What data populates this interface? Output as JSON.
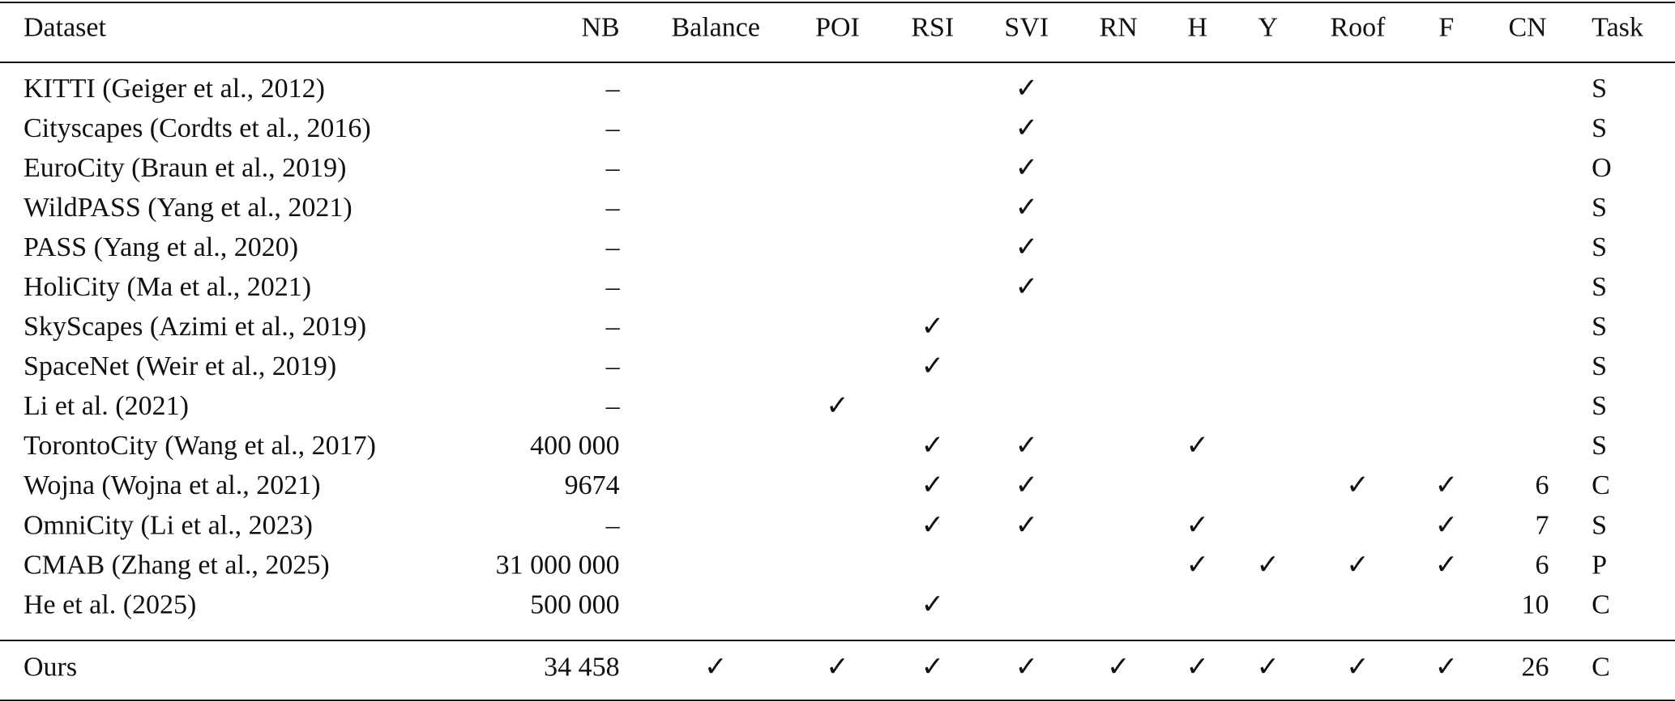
{
  "table": {
    "header": [
      "Dataset",
      "NB",
      "Balance",
      "POI",
      "RSI",
      "SVI",
      "RN",
      "H",
      "Y",
      "Roof",
      "F",
      "CN",
      "Task"
    ],
    "rows": [
      [
        "KITTI (Geiger et al., 2012)",
        "–",
        null,
        null,
        null,
        "✓",
        null,
        null,
        null,
        null,
        null,
        null,
        "S"
      ],
      [
        "Cityscapes (Cordts et al., 2016)",
        "–",
        null,
        null,
        null,
        "✓",
        null,
        null,
        null,
        null,
        null,
        null,
        "S"
      ],
      [
        "EuroCity (Braun et al., 2019)",
        "–",
        null,
        null,
        null,
        "✓",
        null,
        null,
        null,
        null,
        null,
        null,
        "O"
      ],
      [
        "WildPASS (Yang et al., 2021)",
        "–",
        null,
        null,
        null,
        "✓",
        null,
        null,
        null,
        null,
        null,
        null,
        "S"
      ],
      [
        "PASS (Yang et al., 2020)",
        "–",
        null,
        null,
        null,
        "✓",
        null,
        null,
        null,
        null,
        null,
        null,
        "S"
      ],
      [
        "HoliCity (Ma et al., 2021)",
        "–",
        null,
        null,
        null,
        "✓",
        null,
        null,
        null,
        null,
        null,
        null,
        "S"
      ],
      [
        "SkyScapes (Azimi et al., 2019)",
        "–",
        null,
        null,
        "✓",
        null,
        null,
        null,
        null,
        null,
        null,
        null,
        "S"
      ],
      [
        "SpaceNet (Weir et al., 2019)",
        "–",
        null,
        null,
        "✓",
        null,
        null,
        null,
        null,
        null,
        null,
        null,
        "S"
      ],
      [
        "Li et al. (2021)",
        "–",
        null,
        "✓",
        null,
        null,
        null,
        null,
        null,
        null,
        null,
        null,
        "S"
      ],
      [
        "TorontoCity (Wang et al., 2017)",
        "400 000",
        null,
        null,
        "✓",
        "✓",
        null,
        "✓",
        null,
        null,
        null,
        null,
        "S"
      ],
      [
        "Wojna (Wojna et al., 2021)",
        "9674",
        null,
        null,
        "✓",
        "✓",
        null,
        null,
        null,
        "✓",
        "✓",
        "6",
        "C"
      ],
      [
        "OmniCity (Li et al., 2023)",
        "–",
        null,
        null,
        "✓",
        "✓",
        null,
        "✓",
        null,
        null,
        "✓",
        "7",
        "S"
      ],
      [
        "CMAB (Zhang et al., 2025)",
        "31 000 000",
        null,
        null,
        null,
        null,
        null,
        "✓",
        "✓",
        "✓",
        "✓",
        "6",
        "P"
      ],
      [
        "He et al. (2025)",
        "500 000",
        null,
        null,
        "✓",
        null,
        null,
        null,
        null,
        null,
        null,
        "10",
        "C"
      ]
    ],
    "summary_rows": [
      [
        "Ours",
        "34 458",
        "✓",
        "✓",
        "✓",
        "✓",
        "✓",
        "✓",
        "✓",
        "✓",
        "✓",
        "26",
        "C"
      ]
    ]
  }
}
